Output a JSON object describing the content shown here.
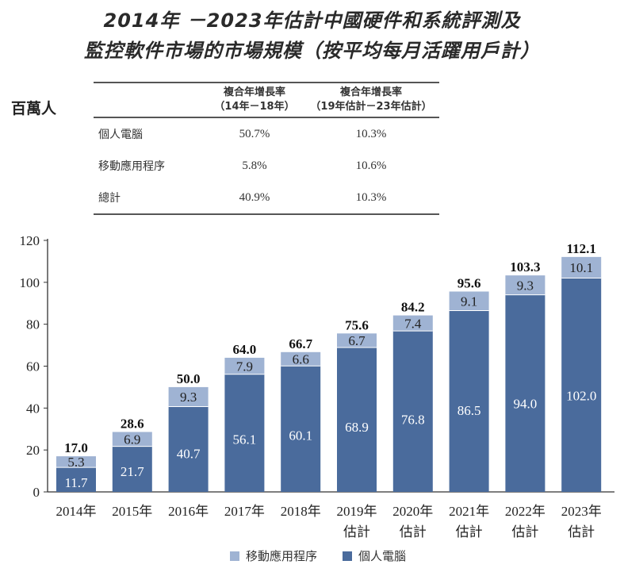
{
  "title_line1": "2014年 －2023年估計中國硬件和系統評測及",
  "title_line2": "監控軟件市場的市場規模（按平均每月活躍用戶計）",
  "unit_label": "百萬人",
  "cagr_table": {
    "headers": [
      {
        "line1": "複合年增長率",
        "line2": "（14年－18年）"
      },
      {
        "line1": "複合年增長率",
        "line2": "（19年估計－23年估計）"
      }
    ],
    "rows": [
      {
        "label": "個人電腦",
        "v1": "50.7%",
        "v2": "10.3%"
      },
      {
        "label": "移動應用程序",
        "v1": "5.8%",
        "v2": "10.6%"
      },
      {
        "label": "總計",
        "v1": "40.9%",
        "v2": "10.3%"
      }
    ]
  },
  "colors": {
    "pc": "#4a6b9c",
    "mobile": "#9fb3d3",
    "axis": "#333333"
  },
  "chart_data": {
    "type": "bar",
    "stacked": true,
    "title": "2014年 －2023年估計中國硬件和系統評測及監控軟件市場的市場規模（按平均每月活躍用戶計）",
    "ylabel": "百萬人",
    "xlabel": "",
    "ylim": [
      0,
      120
    ],
    "yticks": [
      0,
      20,
      40,
      60,
      80,
      100,
      120
    ],
    "grid": false,
    "legend_position": "bottom",
    "categories": [
      [
        "2014年"
      ],
      [
        "2015年"
      ],
      [
        "2016年"
      ],
      [
        "2017年"
      ],
      [
        "2018年"
      ],
      [
        "2019年",
        "估計"
      ],
      [
        "2020年",
        "估計"
      ],
      [
        "2021年",
        "估計"
      ],
      [
        "2022年",
        "估計"
      ],
      [
        "2023年",
        "估計"
      ]
    ],
    "series": [
      {
        "name": "個人電腦",
        "values": [
          11.7,
          21.7,
          40.7,
          56.1,
          60.1,
          68.9,
          76.8,
          86.5,
          94.0,
          102.0
        ]
      },
      {
        "name": "移動應用程序",
        "values": [
          5.3,
          6.9,
          9.3,
          7.9,
          6.6,
          6.7,
          7.4,
          9.1,
          9.3,
          10.1
        ]
      }
    ],
    "totals": [
      17.0,
      28.6,
      50.0,
      64.0,
      66.7,
      75.6,
      84.2,
      95.6,
      103.3,
      112.1
    ],
    "legend": [
      "移動應用程序",
      "個人電腦"
    ]
  }
}
